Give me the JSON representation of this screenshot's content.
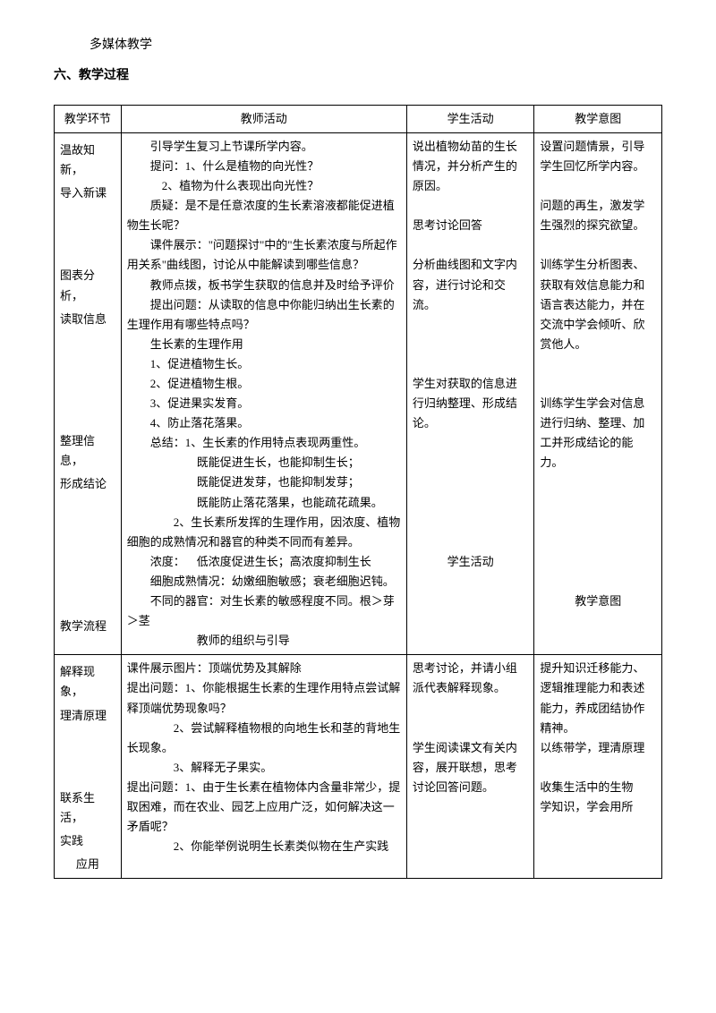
{
  "topText": "多媒体教学",
  "sectionTitle": "六、教学过程",
  "headers": {
    "col1": "教学环节",
    "col2": "教师活动",
    "col3": "学生活动",
    "col4": "教学意图"
  },
  "row1": {
    "stages": {
      "s1a": "温故知新，",
      "s1b": "导入新课",
      "s2a": "图表分析，",
      "s2b": "读取信息",
      "s3a": "整理信息，",
      "s3b": "形成结论",
      "s4": "教学流程"
    },
    "teacher": {
      "t1": "引导学生复习上节课所学内容。",
      "t2": "提问：1、什么是植物的向光性？",
      "t3": "2、植物为什么表现出向光性？",
      "t4": "质疑：是不是任意浓度的生长素溶液都能促进植物生长呢？",
      "t5": "课件展示：\"问题探讨\"中的\"生长素浓度与所起作用关系\"曲线图，讨论从中能解读到哪些信息？",
      "t6": "教师点拨，板书学生获取的信息并及时给予评价",
      "t7": "提出问题：从读取的信息中你能归纳出生长素的生理作用有哪些特点吗？",
      "t8": "生长素的生理作用",
      "t9": "1、促进植物生长。",
      "t10": "2、促进植物生根。",
      "t11": "3、促进果实发育。",
      "t12": "4、防止落花落果。",
      "t13": "总结：1、生长素的作用特点表现两重性。",
      "t14": "既能促进生长，也能抑制生长；",
      "t15": "既能促进发芽，也能抑制发芽；",
      "t16": "既能防止落花落果，也能疏花疏果。",
      "t17": "2、生长素所发挥的生理作用，因浓度、植物细胞的成熟情况和器官的种类不同而有差异。",
      "t18a": "浓度：",
      "t18b": "低浓度促进生长；高浓度抑制生长",
      "t19": "细胞成熟情况：幼嫩细胞敏感；衰老细胞迟钝。",
      "t20": "不同的器官：对生长素的敏感程度不同。根＞芽＞茎",
      "t21": "教师的组织与引导"
    },
    "student": {
      "s1": "说出植物幼苗的生长情况，并分析产生的原因。",
      "s2": "思考讨论回答",
      "s3": "分析曲线图和文字内容，进行讨论和交流。",
      "s4": "学生对获取的信息进行归纳整理、形成结论。",
      "s5": "学生活动"
    },
    "intent": {
      "i1": "设置问题情景，引导学生回忆所学内容。",
      "i2": "问题的再生，激发学生强烈的探究欲望。",
      "i3": "训练学生分析图表、获取有效信息能力和语言表达能力，并在交流中学会倾听、欣赏他人。",
      "i4": "训练学生学会对信息进行归纳、整理、加工并形成结论的能力。",
      "i5": "教学意图"
    }
  },
  "row2": {
    "stages": {
      "s1a": "解释现象，",
      "s1b": "理清原理",
      "s2a": "联系生活，",
      "s2b": "实践",
      "s2c": "应用"
    },
    "teacher": {
      "t1": "课件展示图片：顶端优势及其解除",
      "t2": "提出问题：1、你能根据生长素的生理作用特点尝试解释顶端优势现象吗？",
      "t3": "2、尝试解释植物根的向地生长和茎的背地生长现象。",
      "t4": "3、解释无子果实。",
      "t5": "提出问题：1、由于生长素在植物体内含量非常少，提取困难，而在农业、园艺上应用广泛，如何解决这一矛盾呢？",
      "t6": "2、你能举例说明生长素类似物在生产实践"
    },
    "student": {
      "s1": "思考讨论，并请小组派代表解释现象。",
      "s2": "学生阅读课文有关内容，展开联想，思考讨论回答问题。"
    },
    "intent": {
      "i1": "提升知识迁移能力、逻辑推理能力和表述能力，养成团结协作精神。",
      "i2": "以练带学，理清原理",
      "i3": "收集生活中的生物",
      "i4": "学知识，学会用所"
    }
  }
}
